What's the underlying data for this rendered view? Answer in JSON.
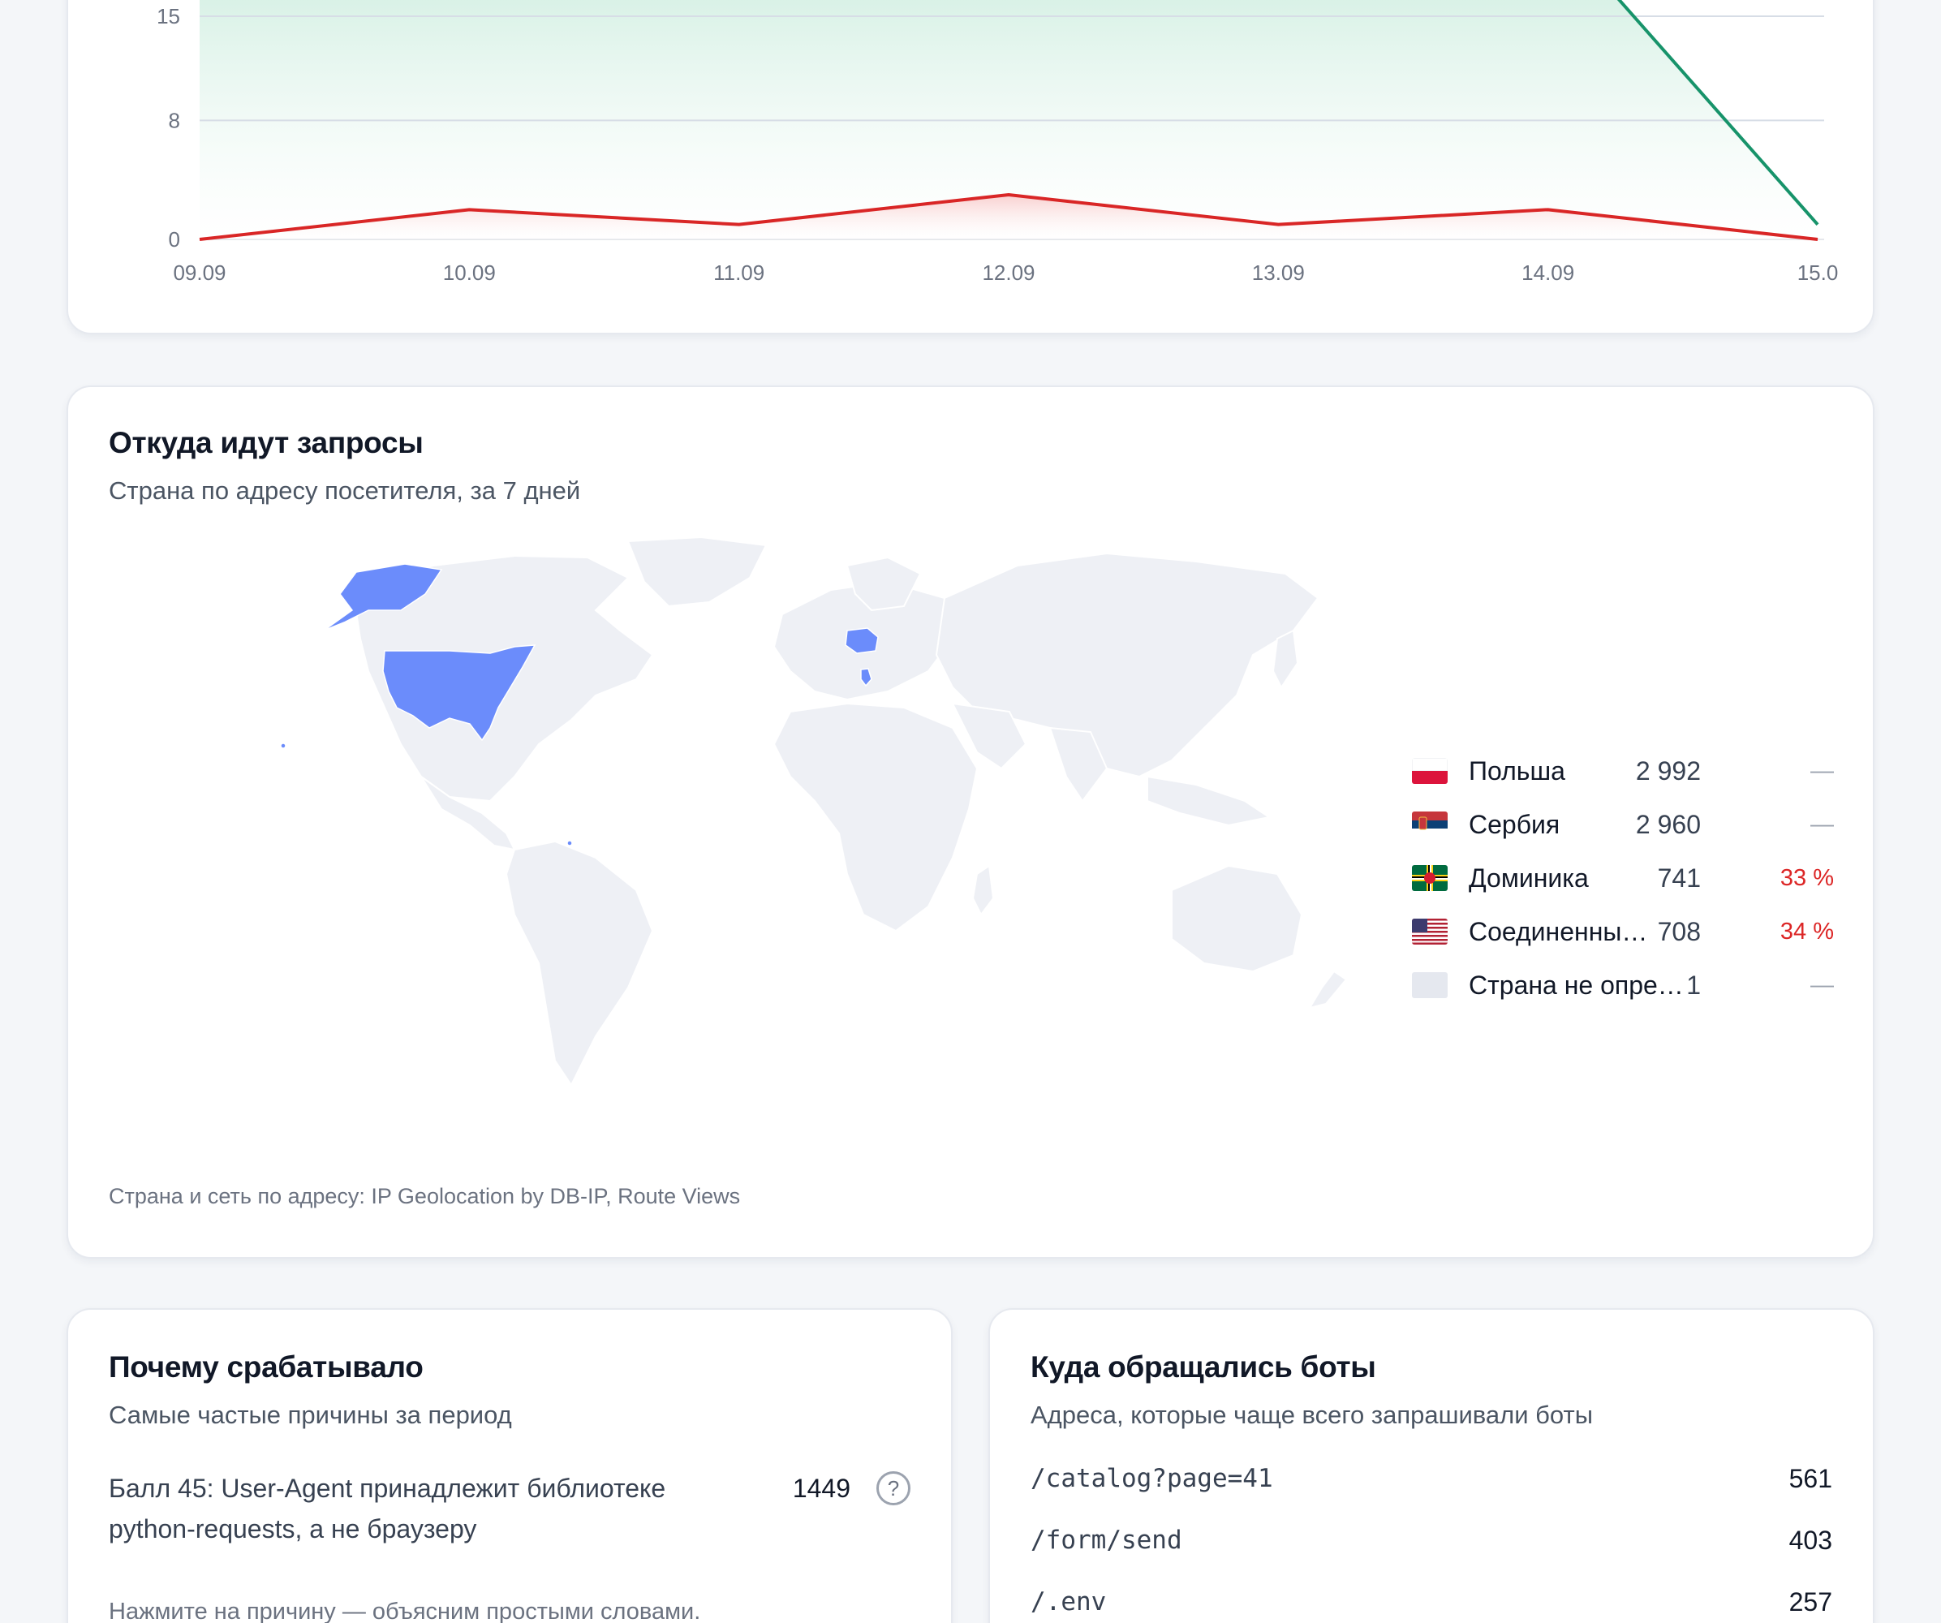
{
  "trend_chart": {
    "chart_data": {
      "type": "area",
      "x": [
        "09.09",
        "10.09",
        "11.09",
        "12.09",
        "13.09",
        "14.09",
        "15.0"
      ],
      "y_ticks": [
        0,
        8,
        15
      ],
      "ylim": [
        0,
        15
      ],
      "series": [
        {
          "color": "#17936a",
          "values": [
            null,
            null,
            null,
            null,
            null,
            null,
            1
          ],
          "fill": "#dff3ea"
        },
        {
          "color": "#d92626",
          "values": [
            0,
            2,
            1,
            3,
            1,
            2,
            0
          ],
          "fill": "#fde2e2"
        }
      ],
      "grid": true
    }
  },
  "geo": {
    "title": "Откуда идут запросы",
    "subtitle": "Страна по адресу посетителя, за 7 дней",
    "legend": [
      {
        "name": "Польша",
        "value": "2 992",
        "change": "—",
        "change_type": "neutral",
        "flag": "poland"
      },
      {
        "name": "Сербия",
        "value": "2 960",
        "change": "—",
        "change_type": "neutral",
        "flag": "serbia"
      },
      {
        "name": "Доминика",
        "value": "741",
        "change": "33 %",
        "change_type": "up",
        "flag": "dominica"
      },
      {
        "name": "Соединенны…",
        "value": "708",
        "change": "34 %",
        "change_type": "up",
        "flag": "usa"
      },
      {
        "name": "Страна не опре…",
        "value": "1",
        "change": "—",
        "change_type": "neutral",
        "flag": "unknown"
      }
    ],
    "highlight_color": "#6b8cfb",
    "land_color": "#eef0f5",
    "source_note": "Страна и сеть по адресу: IP Geolocation by DB-IP, Route Views"
  },
  "reasons": {
    "title": "Почему срабатывало",
    "subtitle": "Самые частые причины за период",
    "items": [
      {
        "text": "Балл 45: User-Agent принадлежит библиотеке python-requests, а не браузеру",
        "count": "1449",
        "help": "?"
      }
    ],
    "hint": "Нажмите на причину — объясним простыми словами."
  },
  "paths": {
    "title": "Куда обращались боты",
    "subtitle": "Адреса, которые чаще всего запрашивали боты",
    "items": [
      {
        "path": "/catalog?page=41",
        "count": "561"
      },
      {
        "path": "/form/send",
        "count": "403"
      },
      {
        "path": "/.env",
        "count": "257"
      }
    ]
  }
}
